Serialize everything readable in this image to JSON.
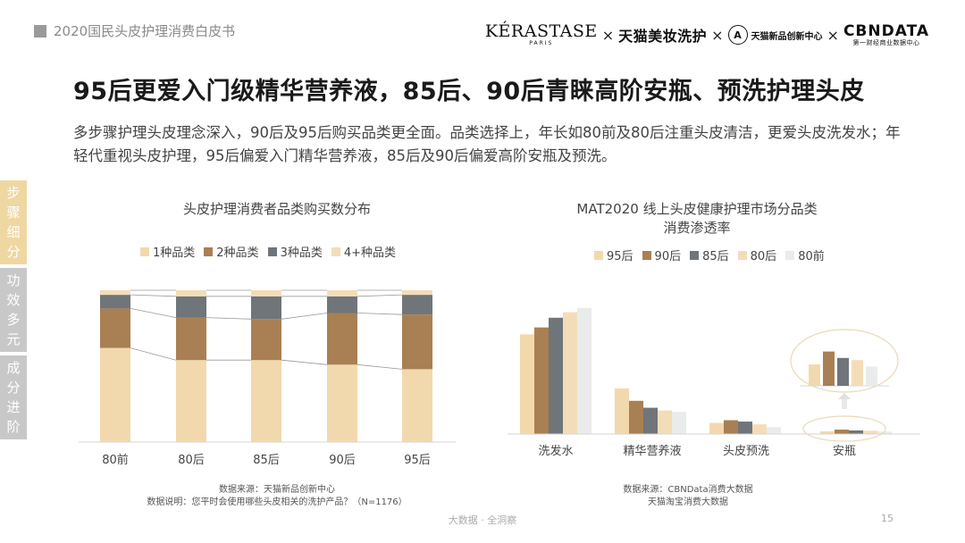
{
  "header": {
    "report_title": "2020国民头皮护理消费白皮书",
    "brands": {
      "kerastase_main": "KÉRASTASE",
      "kerastase_sub": "PARIS",
      "tmall": "天猫美妆洗护",
      "tmall_new_logo": "A",
      "tmall_new": "天猫新品创新中心",
      "cbndata_main": "CBNDATA",
      "cbndata_sub": "第一财经商业数据中心",
      "separator": "×"
    }
  },
  "headline": "95后更爱入门级精华营养液，85后、90后青睐高阶安瓶、预洗护理头皮",
  "intro": "多步骤护理头皮理念深入，90后及95后购买品类更全面。品类选择上，年长如80前及80后注重头皮清洁，更爱头皮洗发水；年轻代重视头皮护理，95后偏爱入门精华营养液，85后及90后偏爱高阶安瓶及预洗。",
  "side_tabs": [
    {
      "label": "步骤细分",
      "active": true
    },
    {
      "label": "功效多元",
      "active": false
    },
    {
      "label": "成分进阶",
      "active": false
    }
  ],
  "left_source": {
    "line1": "数据来源：天猫新品创新中心",
    "line2": "数据说明：您平时会使用哪些头皮相关的洗护产品？（N=1176）"
  },
  "right_source": {
    "line1": "数据来源：CBNData消费大数据",
    "line2": "天猫淘宝消费大数据"
  },
  "footer": "大数据 · 全洞察",
  "page_number": "15",
  "chart_data": [
    {
      "type": "bar",
      "stacked": true,
      "title": "头皮护理消费者品类购买数分布",
      "categories": [
        "80前",
        "80后",
        "85后",
        "90后",
        "95后"
      ],
      "series": [
        {
          "name": "1种品类",
          "color": "#f2d9ad",
          "values": [
            62,
            54,
            54,
            51,
            48
          ]
        },
        {
          "name": "2种品类",
          "color": "#a98053",
          "values": [
            26,
            28,
            27,
            34,
            36
          ]
        },
        {
          "name": "3种品类",
          "color": "#6f7579",
          "values": [
            9,
            14,
            15,
            11,
            13
          ]
        },
        {
          "name": "4+种品类",
          "color": "#f3ddb8",
          "values": [
            3,
            4,
            4,
            4,
            3
          ]
        }
      ],
      "ylim": [
        0,
        100
      ],
      "connectors": true,
      "legend": "top",
      "grid": false
    },
    {
      "type": "bar",
      "title": "MAT2020 线上头皮健康护理市场分品类消费渗透率",
      "title_line1": "MAT2020 线上头皮健康护理市场分品类",
      "title_line2": "消费渗透率",
      "categories": [
        "洗发水",
        "精华营养液",
        "头皮预洗",
        "安瓶"
      ],
      "series": [
        {
          "name": "95后",
          "color": "#f2d9ad",
          "values": [
            72,
            33,
            8,
            2.0
          ]
        },
        {
          "name": "90后",
          "color": "#a98053",
          "values": [
            77,
            24,
            10,
            3.2
          ]
        },
        {
          "name": "85后",
          "color": "#6f7579",
          "values": [
            84,
            19,
            9,
            2.6
          ]
        },
        {
          "name": "80后",
          "color": "#f3ddb8",
          "values": [
            88,
            17,
            7,
            2.4
          ]
        },
        {
          "name": "80前",
          "color": "#e9ecea",
          "values": [
            91,
            16,
            5,
            1.8
          ]
        }
      ],
      "ylim": [
        0,
        100
      ],
      "inset_category": "安瓶",
      "legend": "top",
      "grid": false
    }
  ]
}
